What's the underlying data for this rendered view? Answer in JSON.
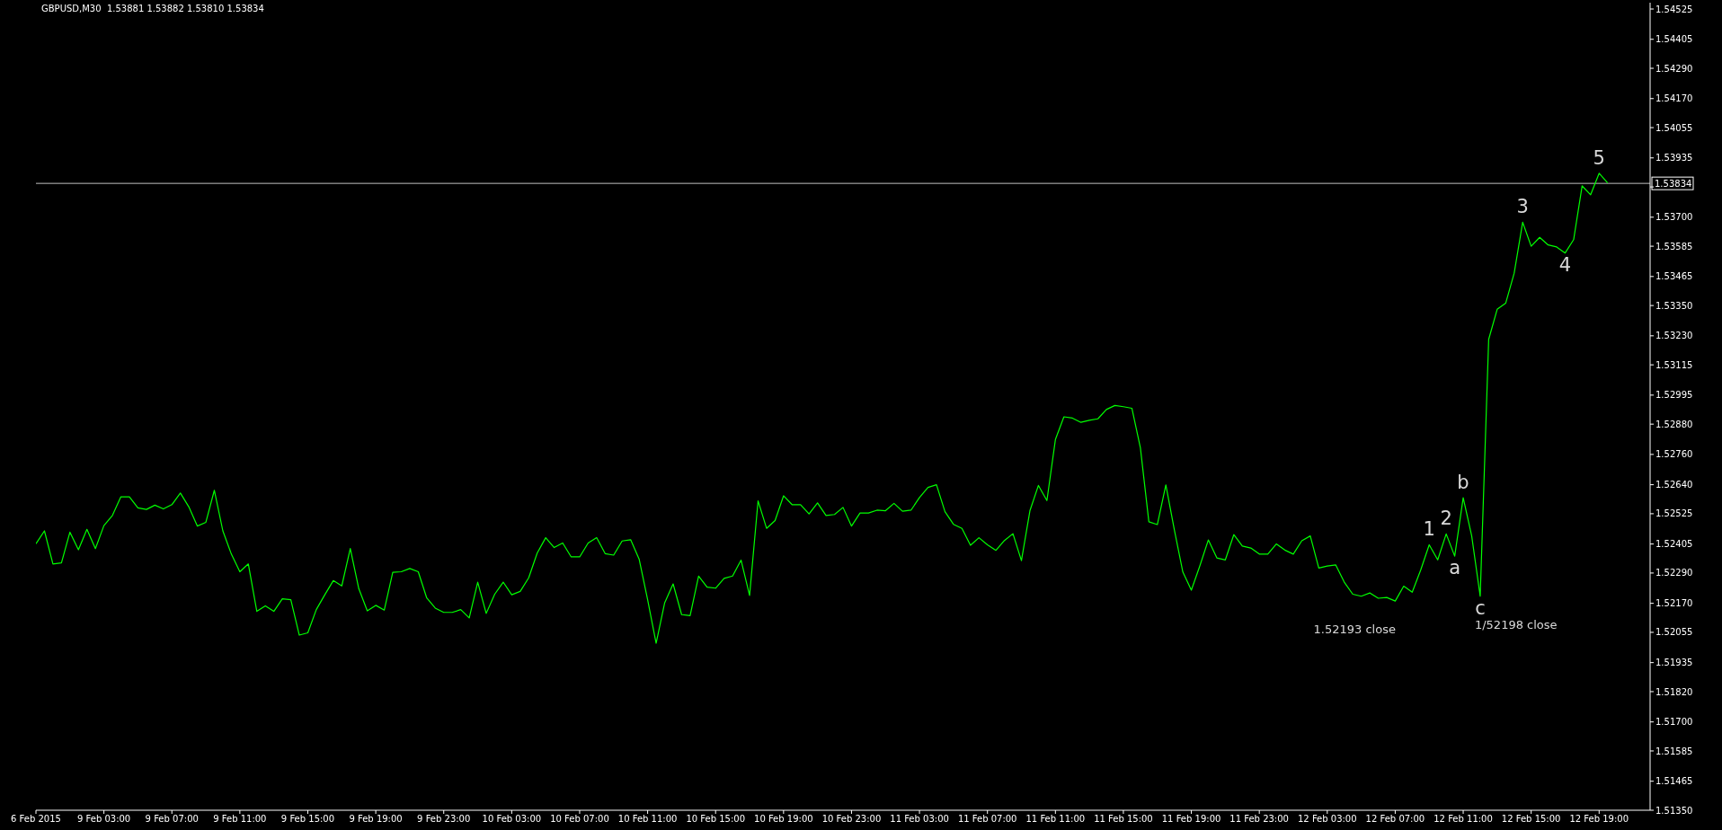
{
  "chart_data": {
    "type": "line",
    "title": "GBPUSD,M30  1.53881 1.53882 1.53810 1.53834",
    "categories": [
      "6 Feb 2015",
      null,
      null,
      null,
      null,
      null,
      null,
      null,
      "9 Feb 03:00",
      null,
      null,
      null,
      null,
      null,
      null,
      null,
      "9 Feb 07:00",
      null,
      null,
      null,
      null,
      null,
      null,
      null,
      "9 Feb 11:00",
      null,
      null,
      null,
      null,
      null,
      null,
      null,
      "9 Feb 15:00",
      null,
      null,
      null,
      null,
      null,
      null,
      null,
      "9 Feb 19:00",
      null,
      null,
      null,
      null,
      null,
      null,
      null,
      "9 Feb 23:00",
      null,
      null,
      null,
      null,
      null,
      null,
      null,
      "10 Feb 03:00",
      null,
      null,
      null,
      null,
      null,
      null,
      null,
      "10 Feb 07:00",
      null,
      null,
      null,
      null,
      null,
      null,
      null,
      "10 Feb 11:00",
      null,
      null,
      null,
      null,
      null,
      null,
      null,
      "10 Feb 15:00",
      null,
      null,
      null,
      null,
      null,
      null,
      null,
      "10 Feb 19:00",
      null,
      null,
      null,
      null,
      null,
      null,
      null,
      "10 Feb 23:00",
      null,
      null,
      null,
      null,
      null,
      null,
      null,
      "11 Feb 03:00",
      null,
      null,
      null,
      null,
      null,
      null,
      null,
      "11 Feb 07:00",
      null,
      null,
      null,
      null,
      null,
      null,
      null,
      "11 Feb 11:00",
      null,
      null,
      null,
      null,
      null,
      null,
      null,
      "11 Feb 15:00",
      null,
      null,
      null,
      null,
      null,
      null,
      null,
      "11 Feb 19:00",
      null,
      null,
      null,
      null,
      null,
      null,
      null,
      "11 Feb 23:00",
      null,
      null,
      null,
      null,
      null,
      null,
      null,
      "12 Feb 03:00",
      null,
      null,
      null,
      null,
      null,
      null,
      null,
      "12 Feb 07:00",
      null,
      null,
      null,
      null,
      null,
      null,
      null,
      "12 Feb 11:00",
      null,
      null,
      null,
      null,
      null,
      null,
      null,
      "12 Feb 15:00",
      null,
      null,
      null,
      null,
      null,
      null,
      null,
      "12 Feb 19:00",
      null,
      null,
      null,
      null,
      null,
      null
    ],
    "series": [
      {
        "color": "#00ff00",
        "values": [
          1.52406,
          1.52457,
          1.52326,
          1.5233,
          1.52452,
          1.52382,
          1.52463,
          1.52387,
          1.52478,
          1.52518,
          1.52592,
          1.52592,
          1.52548,
          1.52542,
          1.52559,
          1.52544,
          1.52561,
          1.52607,
          1.52552,
          1.52476,
          1.52491,
          1.52618,
          1.52457,
          1.52365,
          1.52295,
          1.52326,
          1.52138,
          1.5216,
          1.52138,
          1.52188,
          1.52184,
          1.52044,
          1.52053,
          1.52145,
          1.52204,
          1.5226,
          1.52239,
          1.52387,
          1.52228,
          1.5214,
          1.52162,
          1.52143,
          1.52293,
          1.52295,
          1.52308,
          1.52295,
          1.52191,
          1.52151,
          1.52134,
          1.52134,
          1.52145,
          1.52112,
          1.52254,
          1.5213,
          1.52206,
          1.52254,
          1.52204,
          1.52217,
          1.52271,
          1.52369,
          1.5243,
          1.52391,
          1.52409,
          1.52354,
          1.52354,
          1.52409,
          1.5243,
          1.52367,
          1.52361,
          1.52417,
          1.52422,
          1.52345,
          1.52184,
          1.52012,
          1.52171,
          1.52247,
          1.52125,
          1.52121,
          1.52278,
          1.52234,
          1.5223,
          1.52269,
          1.52278,
          1.52341,
          1.52201,
          1.52576,
          1.52467,
          1.52498,
          1.52596,
          1.52561,
          1.52561,
          1.52524,
          1.52568,
          1.52518,
          1.52522,
          1.5255,
          1.52476,
          1.52528,
          1.52528,
          1.52539,
          1.52537,
          1.52566,
          1.52535,
          1.52539,
          1.52589,
          1.52629,
          1.5264,
          1.52533,
          1.52483,
          1.52467,
          1.524,
          1.5243,
          1.52402,
          1.5238,
          1.52419,
          1.52446,
          1.52339,
          1.52537,
          1.52637,
          1.52577,
          1.52819,
          1.52909,
          1.52904,
          1.52887,
          1.52895,
          1.52901,
          1.52938,
          1.52954,
          1.52949,
          1.52943,
          1.52787,
          1.52493,
          1.52482,
          1.52639,
          1.52461,
          1.52294,
          1.52222,
          1.52318,
          1.52421,
          1.5235,
          1.52342,
          1.52442,
          1.52397,
          1.52389,
          1.52365,
          1.52365,
          1.52405,
          1.52381,
          1.52365,
          1.52418,
          1.52437,
          1.5231,
          1.52318,
          1.52322,
          1.52254,
          1.52206,
          1.52198,
          1.52211,
          1.5219,
          1.52193,
          1.52179,
          1.52238,
          1.52214,
          1.52302,
          1.52402,
          1.52342,
          1.52445,
          1.52357,
          1.52588,
          1.52437,
          1.52198,
          1.53216,
          1.53335,
          1.53359,
          1.53478,
          1.5368,
          1.53585,
          1.5362,
          1.5359,
          1.53582,
          1.53558,
          1.53611,
          1.53824,
          1.53789,
          1.53874,
          1.53836,
          null,
          null,
          null,
          null,
          null
        ]
      }
    ],
    "ylim": [
      1.5135,
      1.5455
    ],
    "yticks": [
      {
        "value": 1.54525,
        "label": "1.54525"
      },
      {
        "value": 1.54405,
        "label": "1.54405"
      },
      {
        "value": 1.5429,
        "label": "1.54290"
      },
      {
        "value": 1.5417,
        "label": "1.54170"
      },
      {
        "value": 1.54055,
        "label": "1.54055"
      },
      {
        "value": 1.53935,
        "label": "1.53935"
      },
      {
        "value": 1.5382,
        "label": null
      },
      {
        "value": 1.537,
        "label": "1.53700"
      },
      {
        "value": 1.53585,
        "label": "1.53585"
      },
      {
        "value": 1.53465,
        "label": "1.53465"
      },
      {
        "value": 1.5335,
        "label": "1.53350"
      },
      {
        "value": 1.5323,
        "label": "1.53230"
      },
      {
        "value": 1.53115,
        "label": "1.53115"
      },
      {
        "value": 1.52995,
        "label": "1.52995"
      },
      {
        "value": 1.5288,
        "label": "1.52880"
      },
      {
        "value": 1.5276,
        "label": "1.52760"
      },
      {
        "value": 1.5264,
        "label": "1.52640"
      },
      {
        "value": 1.52525,
        "label": "1.52525"
      },
      {
        "value": 1.52405,
        "label": "1.52405"
      },
      {
        "value": 1.5229,
        "label": "1.52290"
      },
      {
        "value": 1.5217,
        "label": "1.52170"
      },
      {
        "value": 1.52055,
        "label": "1.52055"
      },
      {
        "value": 1.51935,
        "label": "1.51935"
      },
      {
        "value": 1.5182,
        "label": "1.51820"
      },
      {
        "value": 1.517,
        "label": "1.51700"
      },
      {
        "value": 1.51585,
        "label": "1.51585"
      },
      {
        "value": 1.51465,
        "label": "1.51465"
      },
      {
        "value": 1.5135,
        "label": "1.51350"
      }
    ],
    "ref_lines": [
      {
        "axis": "y",
        "value": 1.53834,
        "label": "1.53834",
        "color": "#c0c0c0"
      }
    ],
    "annotations": [
      {
        "text": "1",
        "y": 1.52402
      },
      {
        "text": "2",
        "y": 1.52445
      },
      {
        "text": "a",
        "y": 1.52357
      },
      {
        "text": "b",
        "y": 1.52588
      },
      {
        "text": "c",
        "y": 1.52198
      },
      "1/52198 close",
      {
        "text": "3",
        "y": 1.5368
      },
      {
        "text": "4",
        "y": 1.53558
      },
      {
        "text": "5",
        "y": 1.53874
      },
      {
        "text": "1.52193 close",
        "y": 1.52193
      }
    ],
    "grid": false,
    "legend": false,
    "marker": "none",
    "line_style": "solid"
  }
}
